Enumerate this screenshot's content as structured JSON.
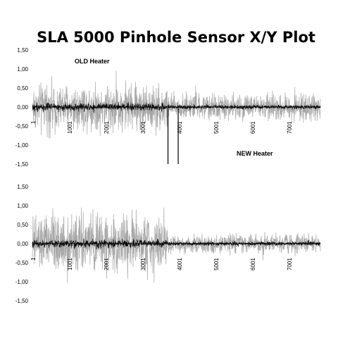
{
  "chart_data": [
    {
      "type": "line",
      "title": "SLA 5000 Pinhole Sensor X/Y Plot",
      "ylim": [
        -1.5,
        1.5
      ],
      "yticks": [
        "1,50",
        "1,00",
        "0,50",
        "0,00",
        "-0,50",
        "-1,00",
        "-1,50"
      ],
      "xlim": [
        1,
        7900
      ],
      "xticks": [
        "1",
        "1001",
        "2001",
        "3001",
        "4001",
        "5001",
        "6001",
        "7001"
      ],
      "grid": false,
      "legend": "none",
      "transition_x": 3700,
      "annotations": [
        {
          "text": "OLD Heater"
        },
        {
          "text": "NEW Heater"
        }
      ],
      "series": [
        {
          "color": "#a6a6a6",
          "envelope_before": 0.9,
          "envelope_after": 0.5
        },
        {
          "color": "#000000",
          "envelope_before": 0.15,
          "envelope_after": 0.08
        }
      ],
      "spikes": [
        {
          "x": 3720,
          "y": -1.5
        },
        {
          "x": 4000,
          "y": -1.5
        }
      ]
    },
    {
      "type": "line",
      "ylim": [
        -1.5,
        1.5
      ],
      "yticks": [
        "1,50",
        "1,00",
        "0,50",
        "0,00",
        "-0,50",
        "-1,00",
        "-1,50"
      ],
      "xlim": [
        1,
        7900
      ],
      "xticks": [
        "1",
        "1001",
        "2001",
        "3001",
        "4001",
        "5001",
        "6001",
        "7001"
      ],
      "grid": false,
      "legend": "none",
      "transition_x": 3700,
      "series": [
        {
          "color": "#a6a6a6",
          "envelope_before": 1.1,
          "envelope_after": 0.35
        },
        {
          "color": "#000000",
          "envelope_before": 0.15,
          "envelope_after": 0.08
        }
      ],
      "spikes": []
    }
  ]
}
